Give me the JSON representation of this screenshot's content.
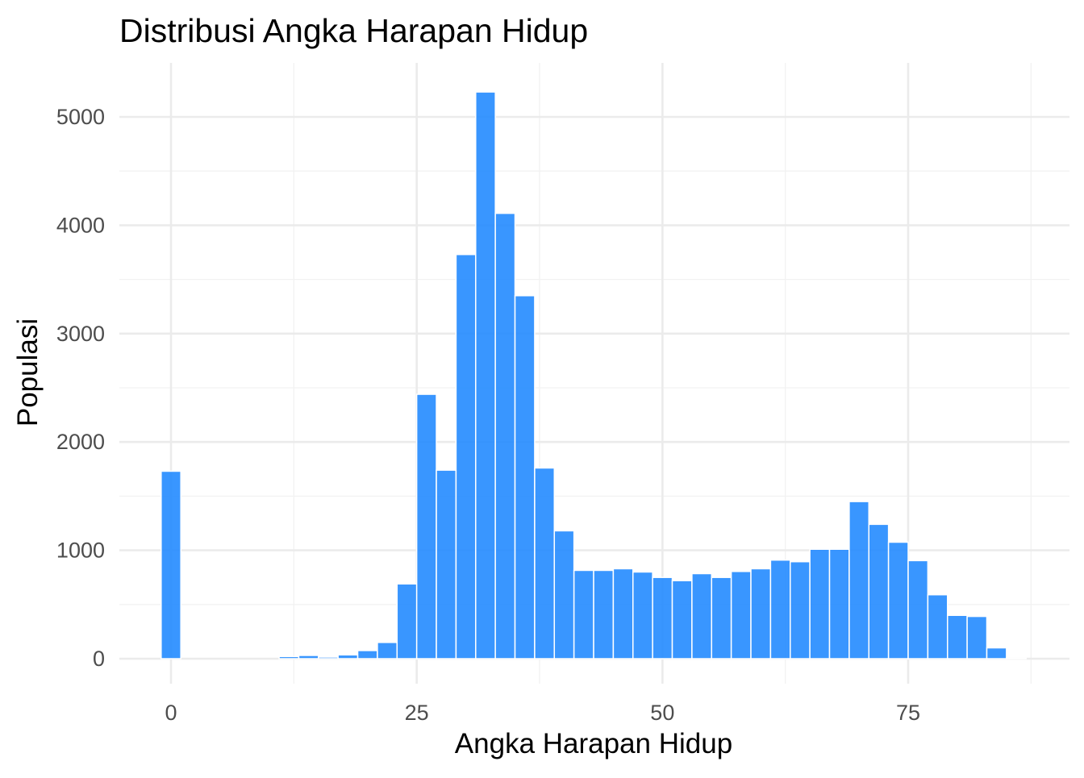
{
  "chart_data": {
    "type": "bar",
    "subtype": "histogram",
    "title": "Distribusi Angka Harapan Hidup",
    "xlabel": "Angka Harapan Hidup",
    "ylabel": "Populasi",
    "xlim": [
      -5,
      87
    ],
    "ylim": [
      -200,
      5500
    ],
    "x_ticks": [
      0,
      25,
      50,
      75
    ],
    "x_tick_labels": [
      "0",
      "25",
      "50",
      "75"
    ],
    "y_ticks": [
      0,
      1000,
      2000,
      3000,
      4000,
      5000
    ],
    "y_tick_labels": [
      "0",
      "1000",
      "2000",
      "3000",
      "4000",
      "5000"
    ],
    "grid": true,
    "legend": "none",
    "bar_color": "#1E88FF",
    "bin_width": 2,
    "bin_centers": [
      0,
      2,
      4,
      6,
      8,
      10,
      12,
      14,
      16,
      18,
      20,
      22,
      24,
      26,
      28,
      30,
      32,
      34,
      36,
      38,
      40,
      42,
      44,
      46,
      48,
      50,
      52,
      54,
      56,
      58,
      60,
      62,
      64,
      66,
      68,
      70,
      72,
      74,
      76,
      78,
      80,
      82,
      84,
      86
    ],
    "values": [
      1730,
      0,
      0,
      0,
      0,
      0,
      20,
      30,
      15,
      35,
      75,
      150,
      690,
      2440,
      1740,
      3730,
      5230,
      4110,
      3350,
      1760,
      1180,
      815,
      815,
      830,
      800,
      750,
      720,
      785,
      750,
      805,
      830,
      910,
      895,
      1010,
      1010,
      1450,
      1240,
      1075,
      905,
      590,
      400,
      390,
      100,
      5
    ]
  }
}
